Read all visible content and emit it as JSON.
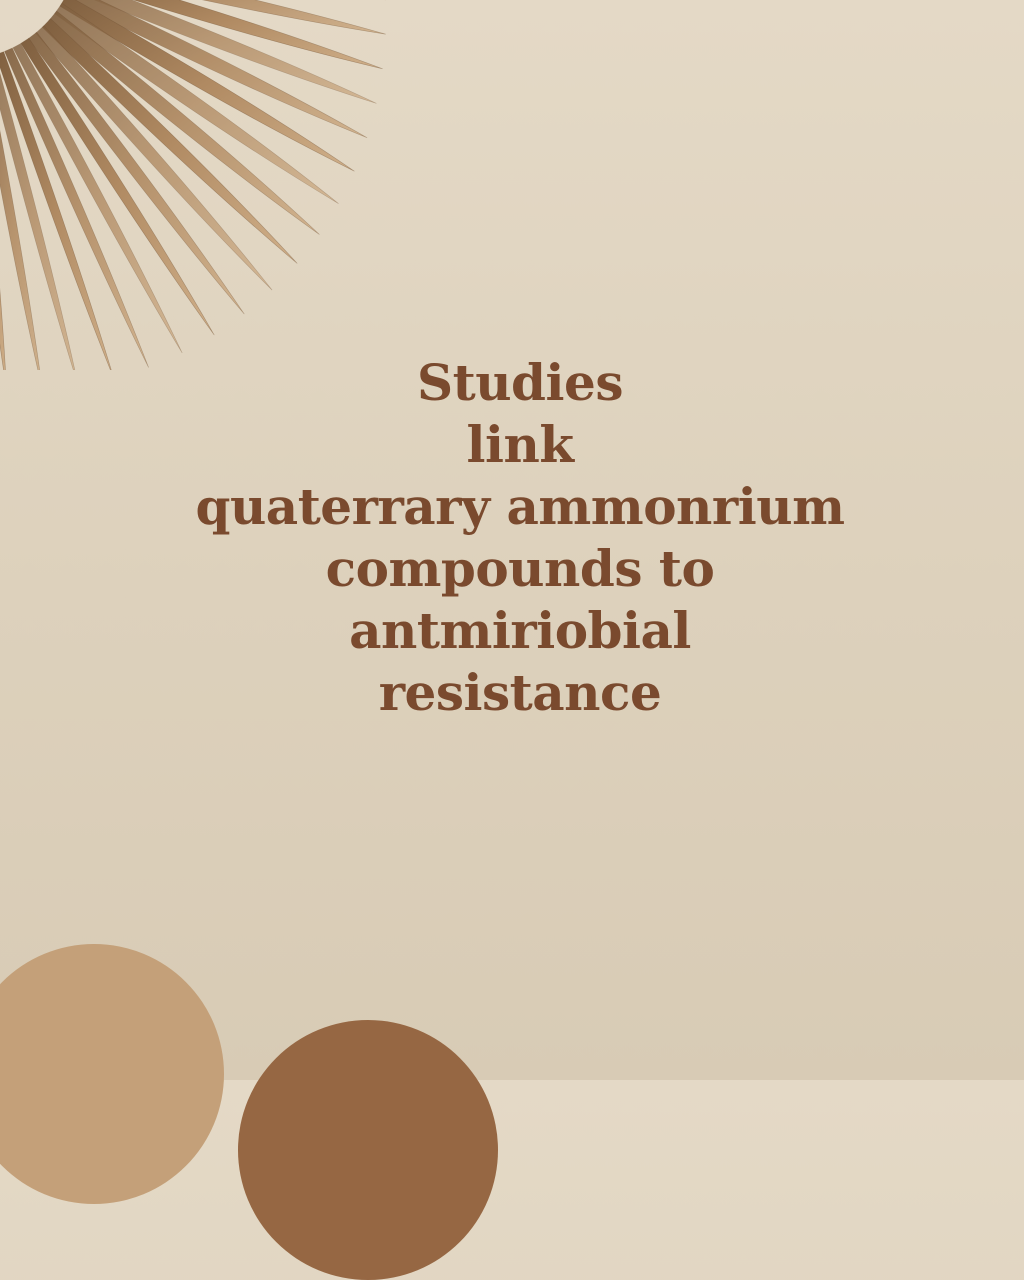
{
  "headline": {
    "lines": [
      "Studies",
      "link",
      "quaterrary ammonrium",
      "compounds to",
      "antmiriobial",
      "resistance"
    ]
  },
  "colors": {
    "background": "#e1d5c1",
    "text": "#7a4a2e",
    "palm_leaf_dark": "#8a6a48",
    "palm_leaf_light": "#c8a67f",
    "circle_light": "#c4a079",
    "circle_dark": "#966743"
  },
  "decorations": {
    "top_left": "palm-leaf",
    "bottom_left": [
      "circle-light",
      "circle-dark"
    ]
  }
}
